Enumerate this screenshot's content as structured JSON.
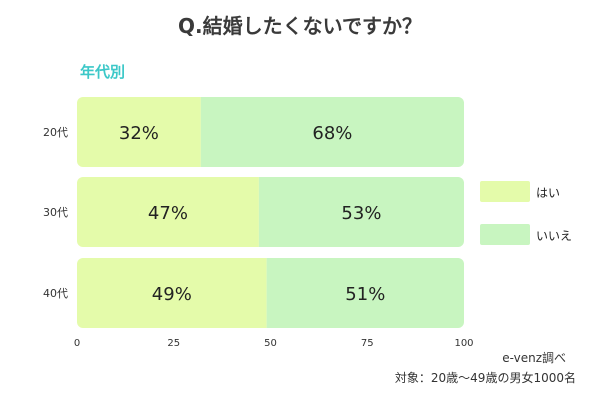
{
  "chart_data": {
    "type": "bar",
    "orientation": "horizontal",
    "stacked": true,
    "title": "Q.結婚したくないですか？",
    "subtitle": "年代別",
    "categories": [
      "20代",
      "30代",
      "40代"
    ],
    "series": [
      {
        "name": "はい",
        "values": [
          32,
          47,
          49
        ],
        "color": "#e4fbaa"
      },
      {
        "name": "いいえ",
        "values": [
          68,
          53,
          51
        ],
        "color": "#c8f5c0"
      }
    ],
    "value_suffix": "%",
    "xlim": [
      0,
      100
    ],
    "xticks": [
      0,
      25,
      50,
      75,
      100
    ],
    "legend_position": "right"
  },
  "subtitle_color": "#3cc8c8",
  "source": "e-venz調べ",
  "note": "対象：20歳〜49歳の男女1000名"
}
